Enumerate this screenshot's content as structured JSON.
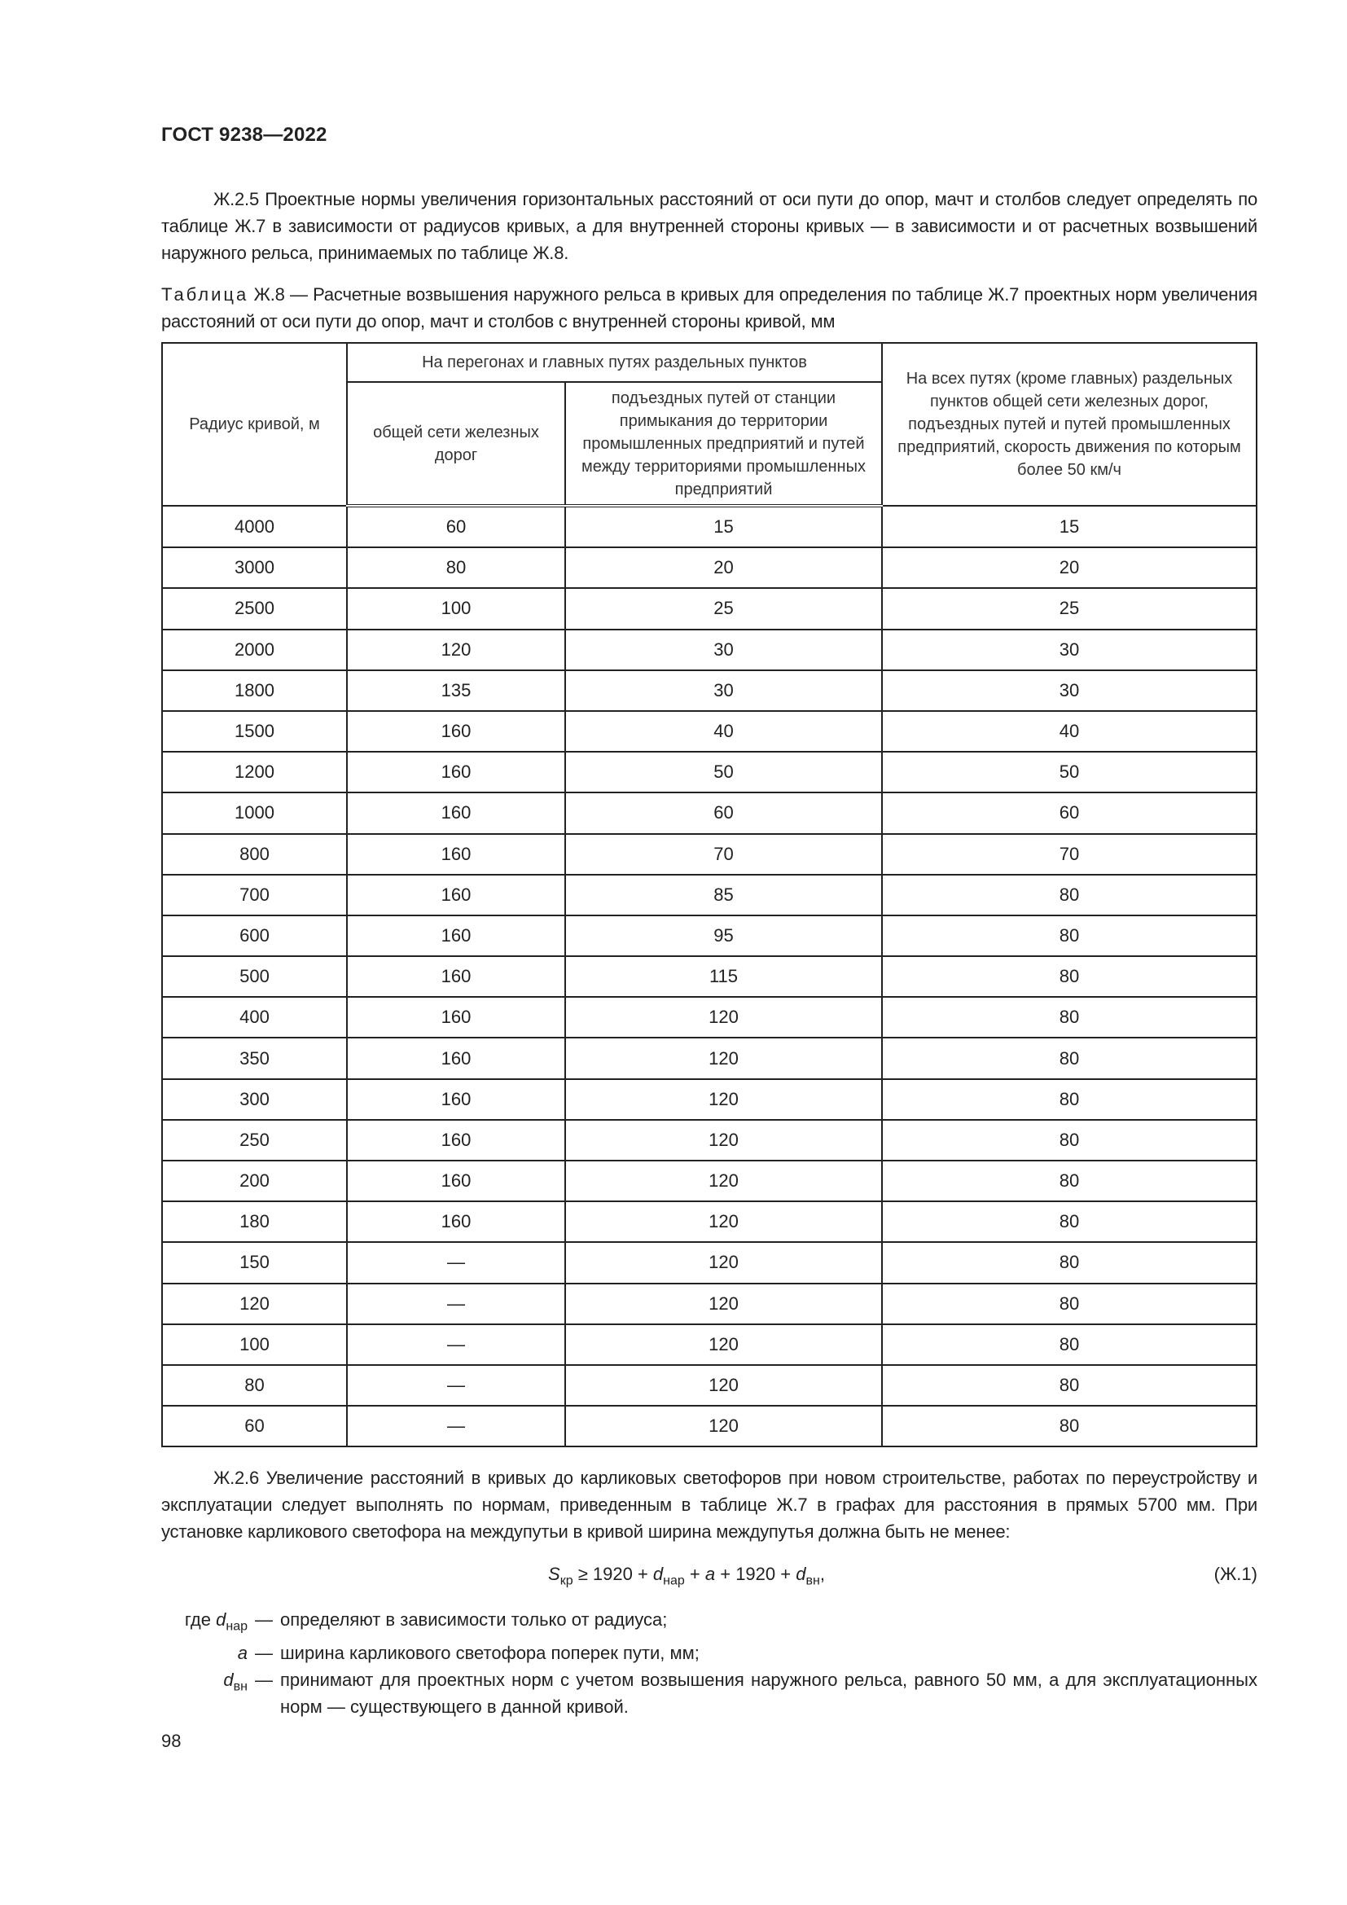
{
  "header": {
    "doc_title": "ГОСТ 9238—2022"
  },
  "para_zh25": "Ж.2.5  Проектные нормы увеличения горизонтальных расстояний от оси пути до опор, мачт и столбов следует определять по таблице Ж.7 в зависимости от радиусов кривых, а для внутренней стороны кривых — в зависимости и от расчетных возвышений наружного рельса, принимаемых по таблице Ж.8.",
  "table_caption": {
    "label": "Таблица",
    "text": " Ж.8 — Расчетные возвышения наружного рельса в кривых для определения по таблице Ж.7 проектных норм увеличения расстояний от оси пути до опор, мачт и столбов с внутренней стороны кривой, мм"
  },
  "table": {
    "headers": {
      "radius": "Радиус кривой, м",
      "group": "На перегонах и главных путях раздельных пунктов",
      "general": "общей сети железных дорог",
      "access": "подъездных путей от станции примыкания до территории промышленных предприятий и путей между территориями промышленных предприятий",
      "all": "На всех путях (кроме главных) раздельных пунктов общей сети железных дорог, подъездных путей и путей промышленных предприятий, скорость движения по которым более 50 км/ч"
    },
    "rows": [
      [
        "4000",
        "60",
        "15",
        "15"
      ],
      [
        "3000",
        "80",
        "20",
        "20"
      ],
      [
        "2500",
        "100",
        "25",
        "25"
      ],
      [
        "2000",
        "120",
        "30",
        "30"
      ],
      [
        "1800",
        "135",
        "30",
        "30"
      ],
      [
        "1500",
        "160",
        "40",
        "40"
      ],
      [
        "1200",
        "160",
        "50",
        "50"
      ],
      [
        "1000",
        "160",
        "60",
        "60"
      ],
      [
        "800",
        "160",
        "70",
        "70"
      ],
      [
        "700",
        "160",
        "85",
        "80"
      ],
      [
        "600",
        "160",
        "95",
        "80"
      ],
      [
        "500",
        "160",
        "115",
        "80"
      ],
      [
        "400",
        "160",
        "120",
        "80"
      ],
      [
        "350",
        "160",
        "120",
        "80"
      ],
      [
        "300",
        "160",
        "120",
        "80"
      ],
      [
        "250",
        "160",
        "120",
        "80"
      ],
      [
        "200",
        "160",
        "120",
        "80"
      ],
      [
        "180",
        "160",
        "120",
        "80"
      ],
      [
        "150",
        "—",
        "120",
        "80"
      ],
      [
        "120",
        "—",
        "120",
        "80"
      ],
      [
        "100",
        "—",
        "120",
        "80"
      ],
      [
        "80",
        "—",
        "120",
        "80"
      ],
      [
        "60",
        "—",
        "120",
        "80"
      ]
    ]
  },
  "para_zh26": "Ж.2.6  Увеличение расстояний в кривых до карликовых светофоров при новом строительстве, работах по переустройству и эксплуатации следует выполнять по нормам, приведенным в таблице Ж.7 в графах для расстояния в прямых 5700 мм. При установке карликового светофора на междупутьи в кривой ширина междупутья должна быть не менее:",
  "formula": {
    "S": "S",
    "S_sub": "кр",
    "op1": " ≥ 1920 + ",
    "d1": "d",
    "d1_sub": "нар",
    "op2": " + ",
    "a": "a",
    "op3": " + 1920 + ",
    "d2": "d",
    "d2_sub": "вн",
    "end": ",",
    "number": "(Ж.1)"
  },
  "where": {
    "prefix": "где ",
    "items": [
      {
        "sym": "d",
        "sub": "нар",
        "text": "определяют в зависимости только от радиуса;"
      },
      {
        "sym": "a",
        "sub": "",
        "text": "ширина карликового светофора поперек пути, мм;"
      },
      {
        "sym": "d",
        "sub": "вн",
        "text": "принимают для проектных норм с учетом возвышения наружного рельса, равного 50 мм, а для эксплуатационных норм — существующего в данной кривой."
      }
    ],
    "dash": "—"
  },
  "page_number": "98"
}
